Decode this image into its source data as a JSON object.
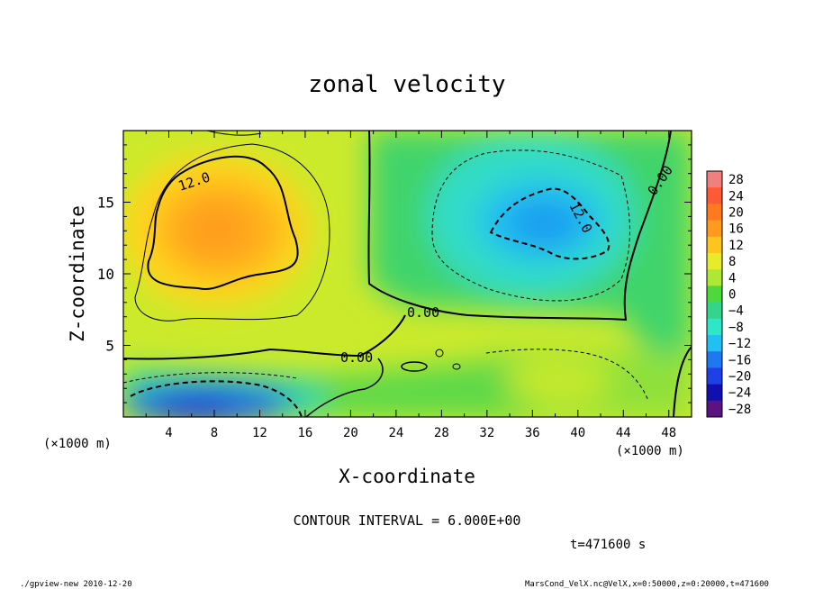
{
  "chart_data": {
    "type": "heatmap",
    "title": "zonal velocity",
    "xlabel": "X-coordinate",
    "ylabel": "Z-coordinate",
    "x_unit_note": "(×1000 m)",
    "y_unit_note": "(×1000 m)",
    "xlim": [
      0,
      50
    ],
    "ylim": [
      0,
      20
    ],
    "x_ticks": [
      4,
      8,
      12,
      16,
      20,
      24,
      28,
      32,
      36,
      40,
      44,
      48
    ],
    "y_ticks": [
      5,
      10,
      15
    ],
    "colorbar": {
      "labels": [
        "28",
        "24",
        "20",
        "16",
        "12",
        "8",
        "4",
        "0",
        "−4",
        "−8",
        "−12",
        "−16",
        "−20",
        "−24",
        "−28"
      ],
      "levels": [
        28,
        24,
        20,
        16,
        12,
        8,
        4,
        0,
        -4,
        -8,
        -12,
        -16,
        -20,
        -24,
        -28
      ],
      "colors": [
        "#f08080",
        "#ff5a36",
        "#ff7a1e",
        "#ff9a1e",
        "#ffc41e",
        "#e6ec2a",
        "#aee834",
        "#4ed83c",
        "#34d58a",
        "#2ee6c8",
        "#20c0f0",
        "#1e78f0",
        "#1e40e6",
        "#1010b0",
        "#5c1280"
      ]
    },
    "field_features": [
      {
        "kind": "max",
        "x": 8,
        "z": 13,
        "value": 17
      },
      {
        "kind": "min",
        "x": 36,
        "z": 13,
        "value": -14
      },
      {
        "kind": "min",
        "x": 8,
        "z": 1,
        "value": -20
      },
      {
        "kind": "max",
        "x": 38,
        "z": 3,
        "value": 8
      }
    ],
    "contour_labels": [
      "12.0",
      "0.00",
      "0.00",
      "12.0",
      "0.00"
    ],
    "contour_interval_text": "CONTOUR INTERVAL = 6.000E+00",
    "time_text": "t=471600 s"
  },
  "footer": {
    "left": "./gpview-new   2010-12-20",
    "right": "MarsCond_VelX.nc@VelX,x=0:50000,z=0:20000,t=471600"
  }
}
